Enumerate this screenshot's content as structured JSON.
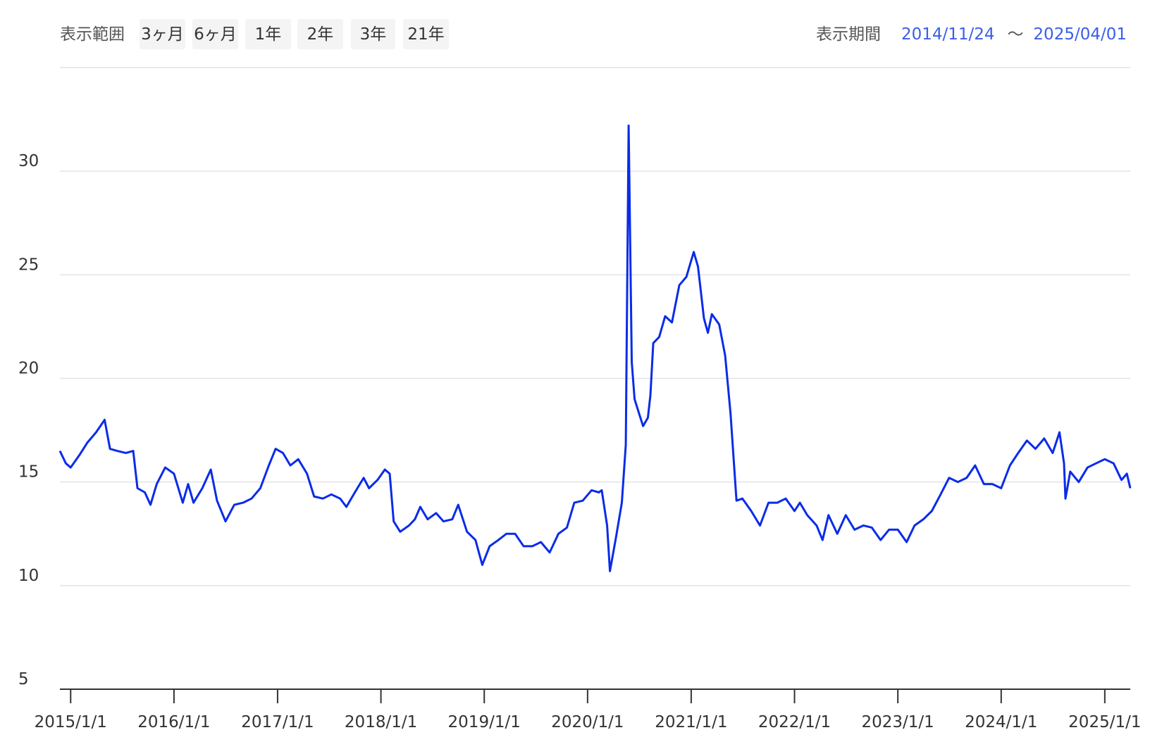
{
  "controls": {
    "range_label": "表示範囲",
    "buttons": [
      "3ヶ月",
      "6ヶ月",
      "1年",
      "2年",
      "3年",
      "21年"
    ],
    "period_label": "表示期間",
    "separator": "〜"
  },
  "chart_data": {
    "type": "line",
    "color": "#0a2be8",
    "grid": true,
    "xlim": [
      "2014/11/24",
      "2025/04/01"
    ],
    "xticks": [
      "2015/1/1",
      "2016/1/1",
      "2017/1/1",
      "2018/1/1",
      "2019/1/1",
      "2020/1/1",
      "2021/1/1",
      "2022/1/1",
      "2023/1/1",
      "2024/1/1",
      "2025/1/1"
    ],
    "ylim": [
      5,
      35
    ],
    "yticks": [
      5,
      10,
      15,
      20,
      25,
      30
    ],
    "x": [
      "2014/11/24",
      "2014/12/15",
      "2015/1/1",
      "2015/2/1",
      "2015/3/1",
      "2015/4/1",
      "2015/5/1",
      "2015/5/20",
      "2015/6/15",
      "2015/7/15",
      "2015/8/10",
      "2015/8/25",
      "2015/9/20",
      "2015/10/10",
      "2015/11/1",
      "2015/12/1",
      "2016/1/1",
      "2016/2/1",
      "2016/2/20",
      "2016/3/10",
      "2016/4/10",
      "2016/5/10",
      "2016/6/1",
      "2016/7/1",
      "2016/8/1",
      "2016/9/1",
      "2016/10/1",
      "2016/11/1",
      "2016/12/1",
      "2016/12/25",
      "2017/1/20",
      "2017/2/15",
      "2017/3/15",
      "2017/4/15",
      "2017/5/10",
      "2017/6/10",
      "2017/7/10",
      "2017/8/10",
      "2017/9/1",
      "2017/10/1",
      "2017/11/1",
      "2017/11/20",
      "2017/12/20",
      "2018/1/15",
      "2018/2/1",
      "2018/2/15",
      "2018/3/10",
      "2018/4/10",
      "2018/5/1",
      "2018/5/20",
      "2018/6/15",
      "2018/7/15",
      "2018/8/10",
      "2018/9/10",
      "2018/10/1",
      "2018/11/1",
      "2018/12/1",
      "2018/12/25",
      "2019/1/20",
      "2019/2/20",
      "2019/3/20",
      "2019/4/20",
      "2019/5/20",
      "2019/6/20",
      "2019/7/20",
      "2019/8/20",
      "2019/9/20",
      "2019/10/20",
      "2019/11/15",
      "2019/12/15",
      "2020/1/15",
      "2020/2/10",
      "2020/2/20",
      "2020/3/10",
      "2020/3/20",
      "2020/4/10",
      "2020/5/1",
      "2020/5/15",
      "2020/5/25",
      "2020/6/5",
      "2020/6/15",
      "2020/7/1",
      "2020/7/15",
      "2020/8/1",
      "2020/8/10",
      "2020/8/20",
      "2020/9/10",
      "2020/10/1",
      "2020/10/25",
      "2020/11/20",
      "2020/12/15",
      "2021/1/10",
      "2021/1/25",
      "2021/2/15",
      "2021/3/1",
      "2021/3/15",
      "2021/4/10",
      "2021/5/1",
      "2021/5/20",
      "2021/6/10",
      "2021/7/1",
      "2021/8/1",
      "2021/9/1",
      "2021/10/1",
      "2021/11/1",
      "2021/12/1",
      "2022/1/1",
      "2022/1/20",
      "2022/2/15",
      "2022/3/20",
      "2022/4/10",
      "2022/5/1",
      "2022/6/1",
      "2022/7/1",
      "2022/8/1",
      "2022/9/1",
      "2022/10/1",
      "2022/11/1",
      "2022/12/1",
      "2023/1/1",
      "2023/2/1",
      "2023/3/1",
      "2023/4/1",
      "2023/5/1",
      "2023/6/1",
      "2023/7/1",
      "2023/8/1",
      "2023/9/1",
      "2023/10/1",
      "2023/11/1",
      "2023/12/1",
      "2024/1/1",
      "2024/2/1",
      "2024/3/1",
      "2024/4/1",
      "2024/5/1",
      "2024/6/1",
      "2024/7/1",
      "2024/7/25",
      "2024/8/10",
      "2024/8/15",
      "2024/9/1",
      "2024/10/1",
      "2024/11/1",
      "2024/12/1",
      "2025/1/1",
      "2025/2/1",
      "2025/3/1",
      "2025/3/20",
      "2025/4/1"
    ],
    "values": [
      16.5,
      15.9,
      15.7,
      16.3,
      16.9,
      17.4,
      18.0,
      16.6,
      16.5,
      16.4,
      16.5,
      14.7,
      14.5,
      13.9,
      14.9,
      15.7,
      15.4,
      14.0,
      14.9,
      14.0,
      14.7,
      15.6,
      14.1,
      13.1,
      13.9,
      14.0,
      14.2,
      14.7,
      15.8,
      16.6,
      16.4,
      15.8,
      16.1,
      15.4,
      14.3,
      14.2,
      14.4,
      14.2,
      13.8,
      14.5,
      15.2,
      14.7,
      15.1,
      15.6,
      15.4,
      13.1,
      12.6,
      12.9,
      13.2,
      13.8,
      13.2,
      13.5,
      13.1,
      13.2,
      13.9,
      12.6,
      12.2,
      11.0,
      11.9,
      12.2,
      12.5,
      12.5,
      11.9,
      11.9,
      12.1,
      11.6,
      12.5,
      12.8,
      14.0,
      14.1,
      14.6,
      14.5,
      14.6,
      12.9,
      10.7,
      12.3,
      14.0,
      16.8,
      32.2,
      20.8,
      19.0,
      18.3,
      17.7,
      18.1,
      19.2,
      21.7,
      22.0,
      23.0,
      22.7,
      24.5,
      24.9,
      26.1,
      25.4,
      22.9,
      22.2,
      23.1,
      22.6,
      21.1,
      18.3,
      14.1,
      14.2,
      13.6,
      12.9,
      14.0,
      14.0,
      14.2,
      13.6,
      14.0,
      13.4,
      12.9,
      12.2,
      13.4,
      12.5,
      13.4,
      12.7,
      12.9,
      12.8,
      12.2,
      12.7,
      12.7,
      12.1,
      12.9,
      13.2,
      13.6,
      14.4,
      15.2,
      15.0,
      15.2,
      15.8,
      14.9,
      14.9,
      14.7,
      15.8,
      16.4,
      17.0,
      16.6,
      17.1,
      16.4,
      17.4,
      15.9,
      14.2,
      15.5,
      15.0,
      15.7,
      15.9,
      16.1,
      15.9,
      15.1,
      15.4,
      14.7
    ]
  }
}
